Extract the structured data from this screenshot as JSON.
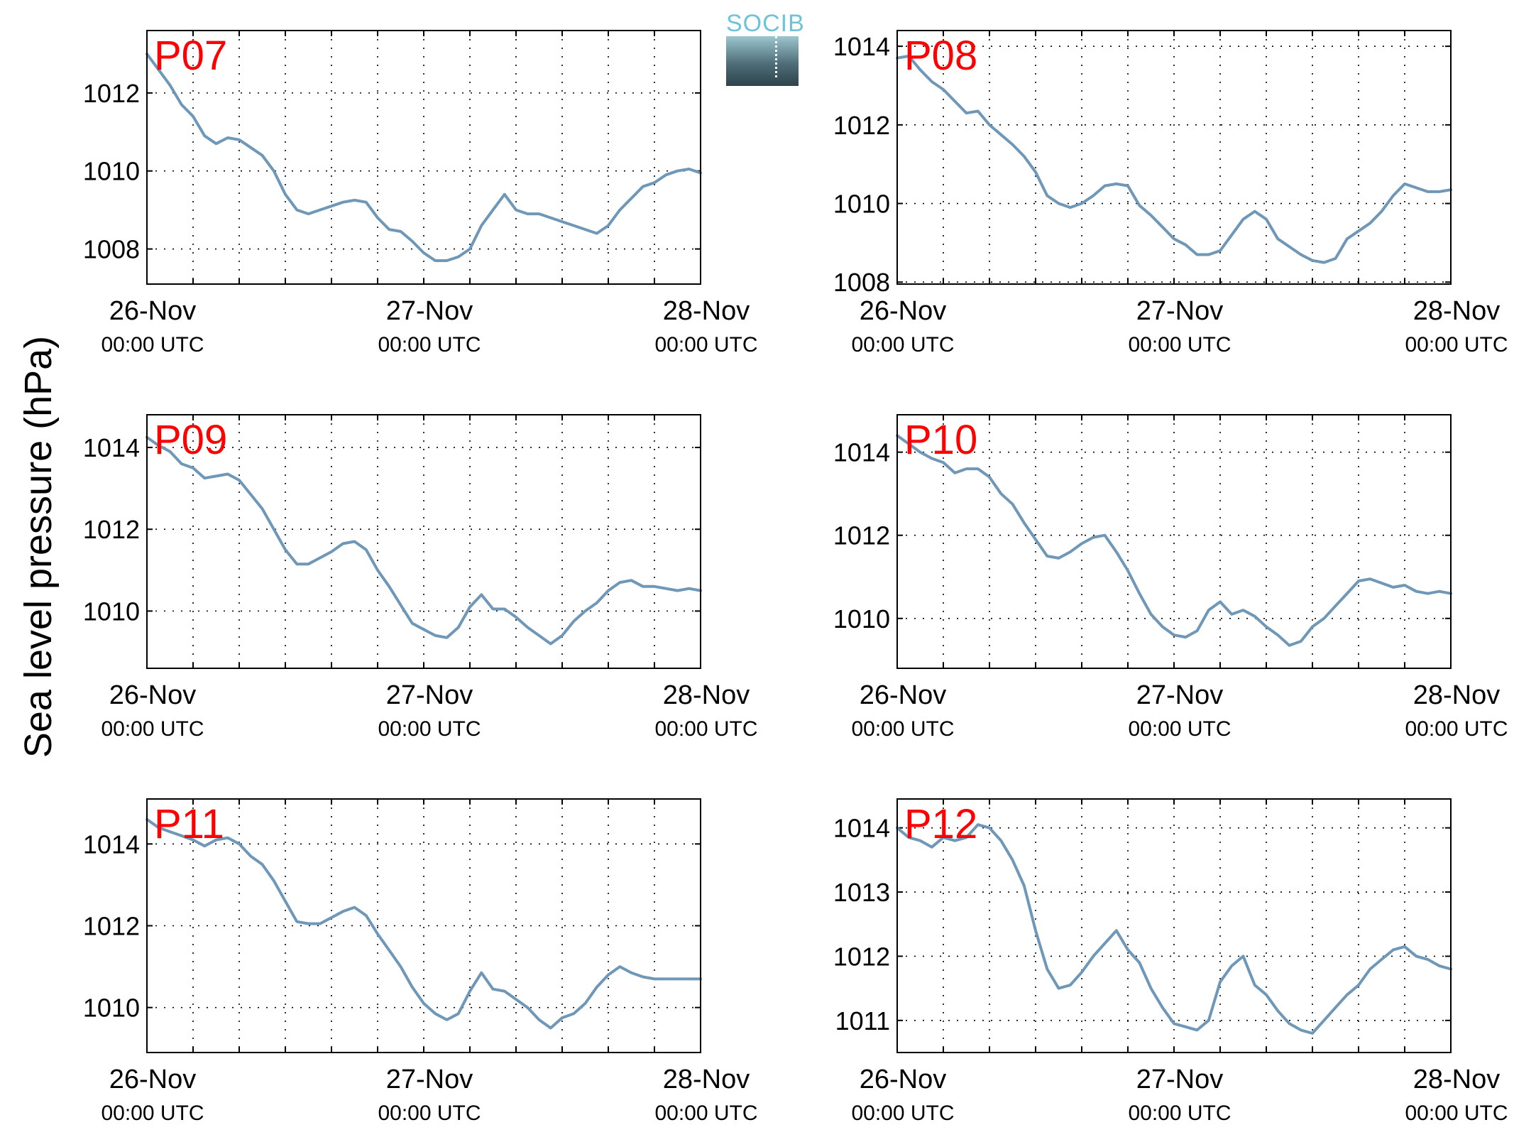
{
  "figure": {
    "ylabel": "Sea level pressure (hPa)",
    "line_color": "#6e97b8",
    "label_color": "#ff0000"
  },
  "logo": {
    "text": "SOCIB",
    "icon": "socib-logo-icon"
  },
  "chart_data": [
    {
      "type": "line",
      "title": "P07",
      "ylabel": "Sea level pressure (hPa)",
      "xlim": [
        0,
        48
      ],
      "ylim": [
        1007.1,
        1013.6
      ],
      "xticks": [
        {
          "label": "26-Nov",
          "sub": "00:00 UTC",
          "x": 0
        },
        {
          "label": "27-Nov",
          "sub": "00:00 UTC",
          "x": 24
        },
        {
          "label": "28-Nov",
          "sub": "00:00 UTC",
          "x": 48
        }
      ],
      "yticks": [
        1008,
        1010,
        1012
      ],
      "grid": true,
      "series": [
        {
          "x": [
            0,
            1,
            2,
            3,
            4,
            5,
            6,
            7,
            8,
            9,
            10,
            11,
            12,
            13,
            14,
            15,
            16,
            17,
            18,
            19,
            20,
            21,
            22,
            23,
            24,
            25,
            26,
            27,
            28,
            29,
            30,
            31,
            32,
            33,
            34,
            35,
            36,
            37,
            38,
            39,
            40,
            41,
            42,
            43,
            44,
            45,
            46,
            47,
            48
          ],
          "y": [
            1013.0,
            1012.6,
            1012.2,
            1011.7,
            1011.4,
            1010.9,
            1010.7,
            1010.85,
            1010.8,
            1010.6,
            1010.4,
            1010.0,
            1009.4,
            1009.0,
            1008.9,
            1009.0,
            1009.1,
            1009.2,
            1009.25,
            1009.2,
            1008.8,
            1008.5,
            1008.45,
            1008.2,
            1007.9,
            1007.7,
            1007.7,
            1007.8,
            1008.0,
            1008.6,
            1009.0,
            1009.4,
            1009.0,
            1008.9,
            1008.9,
            1008.8,
            1008.7,
            1008.6,
            1008.5,
            1008.4,
            1008.6,
            1009.0,
            1009.3,
            1009.6,
            1009.7,
            1009.9,
            1010.0,
            1010.05,
            1009.95
          ]
        }
      ]
    },
    {
      "type": "line",
      "title": "P08",
      "ylabel": "Sea level pressure (hPa)",
      "xlim": [
        0,
        48
      ],
      "ylim": [
        1007.95,
        1014.4
      ],
      "xticks": [
        {
          "label": "26-Nov",
          "sub": "00:00 UTC",
          "x": 0
        },
        {
          "label": "27-Nov",
          "sub": "00:00 UTC",
          "x": 24
        },
        {
          "label": "28-Nov",
          "sub": "00:00 UTC",
          "x": 48
        }
      ],
      "yticks": [
        1008,
        1010,
        1012,
        1014
      ],
      "grid": true,
      "series": [
        {
          "x": [
            0,
            1,
            2,
            3,
            4,
            5,
            6,
            7,
            8,
            9,
            10,
            11,
            12,
            13,
            14,
            15,
            16,
            17,
            18,
            19,
            20,
            21,
            22,
            23,
            24,
            25,
            26,
            27,
            28,
            29,
            30,
            31,
            32,
            33,
            34,
            35,
            36,
            37,
            38,
            39,
            40,
            41,
            42,
            43,
            44,
            45,
            46,
            47,
            48
          ],
          "y": [
            1013.7,
            1013.75,
            1013.4,
            1013.1,
            1012.9,
            1012.6,
            1012.3,
            1012.35,
            1012.0,
            1011.75,
            1011.5,
            1011.2,
            1010.8,
            1010.2,
            1010.0,
            1009.9,
            1010.0,
            1010.2,
            1010.45,
            1010.5,
            1010.45,
            1009.95,
            1009.7,
            1009.4,
            1009.1,
            1008.95,
            1008.7,
            1008.7,
            1008.8,
            1009.2,
            1009.6,
            1009.8,
            1009.6,
            1009.1,
            1008.9,
            1008.7,
            1008.55,
            1008.5,
            1008.6,
            1009.1,
            1009.3,
            1009.5,
            1009.8,
            1010.2,
            1010.5,
            1010.4,
            1010.3,
            1010.3,
            1010.35
          ]
        }
      ]
    },
    {
      "type": "line",
      "title": "P09",
      "ylabel": "Sea level pressure (hPa)",
      "xlim": [
        0,
        48
      ],
      "ylim": [
        1008.6,
        1014.8
      ],
      "xticks": [
        {
          "label": "26-Nov",
          "sub": "00:00 UTC",
          "x": 0
        },
        {
          "label": "27-Nov",
          "sub": "00:00 UTC",
          "x": 24
        },
        {
          "label": "28-Nov",
          "sub": "00:00 UTC",
          "x": 48
        }
      ],
      "yticks": [
        1010,
        1012,
        1014
      ],
      "grid": true,
      "series": [
        {
          "x": [
            0,
            1,
            2,
            3,
            4,
            5,
            6,
            7,
            8,
            9,
            10,
            11,
            12,
            13,
            14,
            15,
            16,
            17,
            18,
            19,
            20,
            21,
            22,
            23,
            24,
            25,
            26,
            27,
            28,
            29,
            30,
            31,
            32,
            33,
            34,
            35,
            36,
            37,
            38,
            39,
            40,
            41,
            42,
            43,
            44,
            45,
            46,
            47,
            48
          ],
          "y": [
            1014.25,
            1014.05,
            1013.9,
            1013.6,
            1013.5,
            1013.25,
            1013.3,
            1013.35,
            1013.2,
            1012.85,
            1012.5,
            1012.0,
            1011.5,
            1011.15,
            1011.15,
            1011.3,
            1011.45,
            1011.65,
            1011.7,
            1011.5,
            1011.0,
            1010.6,
            1010.15,
            1009.7,
            1009.55,
            1009.4,
            1009.35,
            1009.6,
            1010.1,
            1010.4,
            1010.05,
            1010.05,
            1009.85,
            1009.6,
            1009.4,
            1009.2,
            1009.4,
            1009.75,
            1010.0,
            1010.2,
            1010.5,
            1010.7,
            1010.75,
            1010.6,
            1010.6,
            1010.55,
            1010.5,
            1010.55,
            1010.5
          ]
        }
      ]
    },
    {
      "type": "line",
      "title": "P10",
      "ylabel": "Sea level pressure (hPa)",
      "xlim": [
        0,
        48
      ],
      "ylim": [
        1008.8,
        1014.9
      ],
      "xticks": [
        {
          "label": "26-Nov",
          "sub": "00:00 UTC",
          "x": 0
        },
        {
          "label": "27-Nov",
          "sub": "00:00 UTC",
          "x": 24
        },
        {
          "label": "28-Nov",
          "sub": "00:00 UTC",
          "x": 48
        }
      ],
      "yticks": [
        1010,
        1012,
        1014
      ],
      "grid": true,
      "series": [
        {
          "x": [
            0,
            1,
            2,
            3,
            4,
            5,
            6,
            7,
            8,
            9,
            10,
            11,
            12,
            13,
            14,
            15,
            16,
            17,
            18,
            19,
            20,
            21,
            22,
            23,
            24,
            25,
            26,
            27,
            28,
            29,
            30,
            31,
            32,
            33,
            34,
            35,
            36,
            37,
            38,
            39,
            40,
            41,
            42,
            43,
            44,
            45,
            46,
            47,
            48
          ],
          "y": [
            1014.4,
            1014.2,
            1014.0,
            1013.85,
            1013.75,
            1013.5,
            1013.6,
            1013.6,
            1013.4,
            1013.0,
            1012.75,
            1012.3,
            1011.9,
            1011.5,
            1011.45,
            1011.6,
            1011.8,
            1011.95,
            1012.0,
            1011.6,
            1011.15,
            1010.6,
            1010.1,
            1009.8,
            1009.6,
            1009.55,
            1009.7,
            1010.2,
            1010.4,
            1010.1,
            1010.2,
            1010.05,
            1009.8,
            1009.6,
            1009.35,
            1009.45,
            1009.8,
            1010.0,
            1010.3,
            1010.6,
            1010.9,
            1010.95,
            1010.85,
            1010.75,
            1010.8,
            1010.65,
            1010.6,
            1010.65,
            1010.6
          ]
        }
      ]
    },
    {
      "type": "line",
      "title": "P11",
      "ylabel": "Sea level pressure (hPa)",
      "xlim": [
        0,
        48
      ],
      "ylim": [
        1008.9,
        1015.1
      ],
      "xticks": [
        {
          "label": "26-Nov",
          "sub": "00:00 UTC",
          "x": 0
        },
        {
          "label": "27-Nov",
          "sub": "00:00 UTC",
          "x": 24
        },
        {
          "label": "28-Nov",
          "sub": "00:00 UTC",
          "x": 48
        }
      ],
      "yticks": [
        1010,
        1012,
        1014
      ],
      "grid": true,
      "series": [
        {
          "x": [
            0,
            1,
            2,
            3,
            4,
            5,
            6,
            7,
            8,
            9,
            10,
            11,
            12,
            13,
            14,
            15,
            16,
            17,
            18,
            19,
            20,
            21,
            22,
            23,
            24,
            25,
            26,
            27,
            28,
            29,
            30,
            31,
            32,
            33,
            34,
            35,
            36,
            37,
            38,
            39,
            40,
            41,
            42,
            43,
            44,
            45,
            46,
            47,
            48
          ],
          "y": [
            1014.6,
            1014.4,
            1014.3,
            1014.2,
            1014.1,
            1013.95,
            1014.1,
            1014.15,
            1014.0,
            1013.7,
            1013.5,
            1013.1,
            1012.6,
            1012.1,
            1012.05,
            1012.05,
            1012.2,
            1012.35,
            1012.45,
            1012.25,
            1011.8,
            1011.4,
            1011.0,
            1010.5,
            1010.1,
            1009.85,
            1009.7,
            1009.85,
            1010.4,
            1010.85,
            1010.45,
            1010.4,
            1010.2,
            1010.0,
            1009.7,
            1009.5,
            1009.75,
            1009.85,
            1010.1,
            1010.5,
            1010.8,
            1011.0,
            1010.85,
            1010.75,
            1010.7,
            1010.7,
            1010.7,
            1010.7,
            1010.7
          ]
        }
      ]
    },
    {
      "type": "line",
      "title": "P12",
      "ylabel": "Sea level pressure (hPa)",
      "xlim": [
        0,
        48
      ],
      "ylim": [
        1010.5,
        1014.45
      ],
      "xticks": [
        {
          "label": "26-Nov",
          "sub": "00:00 UTC",
          "x": 0
        },
        {
          "label": "27-Nov",
          "sub": "00:00 UTC",
          "x": 24
        },
        {
          "label": "28-Nov",
          "sub": "00:00 UTC",
          "x": 48
        }
      ],
      "yticks": [
        1011,
        1012,
        1013,
        1014
      ],
      "grid": true,
      "series": [
        {
          "x": [
            0,
            1,
            2,
            3,
            4,
            5,
            6,
            7,
            8,
            9,
            10,
            11,
            12,
            13,
            14,
            15,
            16,
            17,
            18,
            19,
            20,
            21,
            22,
            23,
            24,
            25,
            26,
            27,
            28,
            29,
            30,
            31,
            32,
            33,
            34,
            35,
            36,
            37,
            38,
            39,
            40,
            41,
            42,
            43,
            44,
            45,
            46,
            47,
            48
          ],
          "y": [
            1014.0,
            1013.85,
            1013.8,
            1013.7,
            1013.85,
            1013.8,
            1013.85,
            1014.05,
            1014.0,
            1013.8,
            1013.5,
            1013.1,
            1012.4,
            1011.8,
            1011.5,
            1011.55,
            1011.75,
            1012.0,
            1012.2,
            1012.4,
            1012.1,
            1011.9,
            1011.5,
            1011.2,
            1010.95,
            1010.9,
            1010.85,
            1011.0,
            1011.6,
            1011.85,
            1012.0,
            1011.55,
            1011.4,
            1011.15,
            1010.95,
            1010.85,
            1010.8,
            1011.0,
            1011.2,
            1011.4,
            1011.55,
            1011.8,
            1011.95,
            1012.1,
            1012.15,
            1012.0,
            1011.95,
            1011.85,
            1011.8
          ]
        }
      ]
    }
  ]
}
